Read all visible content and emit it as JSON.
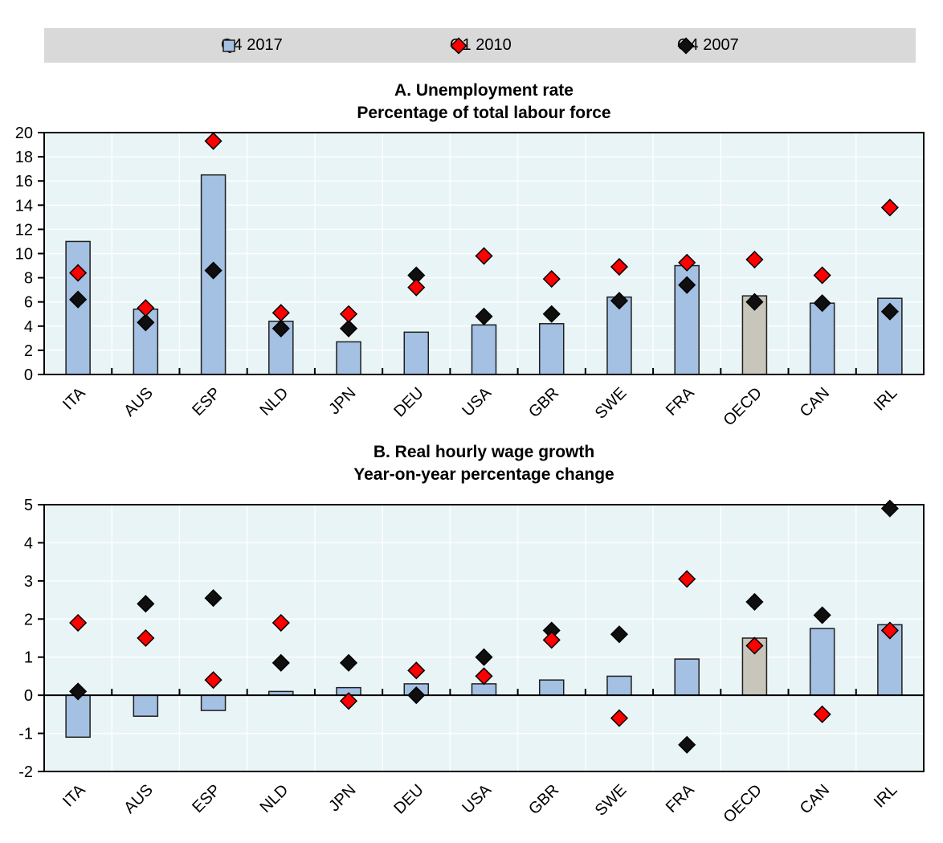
{
  "legend": {
    "items": [
      {
        "label": "Q4 2017",
        "marker": "square",
        "color": "#a4c0e2"
      },
      {
        "label": "Q1 2010",
        "marker": "diamond",
        "color": "#ff0000"
      },
      {
        "label": "Q4 2007",
        "marker": "diamond",
        "color": "#0f0f0f"
      }
    ]
  },
  "colors": {
    "bar_fill": "#a4c0e2",
    "bar_highlight_fill": "#c8c5ba",
    "bar_stroke": "#1f1f1f",
    "red_marker": "#ff0000",
    "black_marker": "#0f0f0f",
    "plot_bg": "#e9f4f6",
    "gridline": "#ffffff",
    "legend_bg": "#d9d9d9"
  },
  "chart_data": [
    {
      "type": "bar",
      "title": "A. Unemployment rate",
      "subtitle": "Percentage of total labour force",
      "categories": [
        "ITA",
        "AUS",
        "ESP",
        "NLD",
        "JPN",
        "DEU",
        "USA",
        "GBR",
        "SWE",
        "FRA",
        "OECD",
        "CAN",
        "IRL"
      ],
      "highlight_category": "OECD",
      "ylim": [
        0,
        20
      ],
      "ytick_step": 2,
      "ytick_labels": [
        "0",
        "2",
        "4",
        "6",
        "8",
        "10",
        "12",
        "14",
        "16",
        "18",
        "20"
      ],
      "grid": true,
      "legend_position": "top",
      "series": [
        {
          "name": "Q4 2017",
          "type": "bar",
          "values": [
            11.0,
            5.4,
            16.5,
            4.4,
            2.7,
            3.5,
            4.1,
            4.2,
            6.4,
            9.0,
            6.5,
            5.9,
            6.3
          ]
        },
        {
          "name": "Q1 2010",
          "type": "scatter",
          "marker": "diamond",
          "values": [
            8.4,
            5.5,
            19.3,
            5.1,
            5.0,
            7.2,
            9.8,
            7.9,
            8.9,
            9.25,
            9.5,
            8.2,
            13.8
          ]
        },
        {
          "name": "Q4 2007",
          "type": "scatter",
          "marker": "diamond",
          "values": [
            6.2,
            4.3,
            8.6,
            3.8,
            3.8,
            8.2,
            4.8,
            5.0,
            6.1,
            7.4,
            6.0,
            5.9,
            5.2
          ]
        }
      ]
    },
    {
      "type": "bar",
      "title": "B. Real hourly wage growth",
      "subtitle": "Year-on-year percentage change",
      "categories": [
        "ITA",
        "AUS",
        "ESP",
        "NLD",
        "JPN",
        "DEU",
        "USA",
        "GBR",
        "SWE",
        "FRA",
        "OECD",
        "CAN",
        "IRL"
      ],
      "highlight_category": "OECD",
      "ylim": [
        -2,
        5
      ],
      "ytick_step": 1,
      "ytick_labels": [
        "-2",
        "-1",
        "0",
        "1",
        "2",
        "3",
        "4",
        "5"
      ],
      "grid": true,
      "legend_position": "top",
      "series": [
        {
          "name": "Q4 2017",
          "type": "bar",
          "values": [
            -1.1,
            -0.55,
            -0.4,
            0.1,
            0.2,
            0.3,
            0.3,
            0.4,
            0.5,
            0.95,
            1.5,
            1.75,
            1.85
          ]
        },
        {
          "name": "Q1 2010",
          "type": "scatter",
          "marker": "diamond",
          "values": [
            1.9,
            1.5,
            0.4,
            1.9,
            -0.15,
            0.65,
            0.5,
            1.45,
            -0.6,
            3.05,
            1.3,
            -0.5,
            1.7
          ]
        },
        {
          "name": "Q4 2007",
          "type": "scatter",
          "marker": "diamond",
          "values": [
            0.1,
            2.4,
            2.55,
            0.85,
            0.85,
            0.0,
            1.0,
            1.7,
            1.6,
            -1.3,
            2.45,
            2.1,
            4.9
          ]
        }
      ]
    }
  ]
}
